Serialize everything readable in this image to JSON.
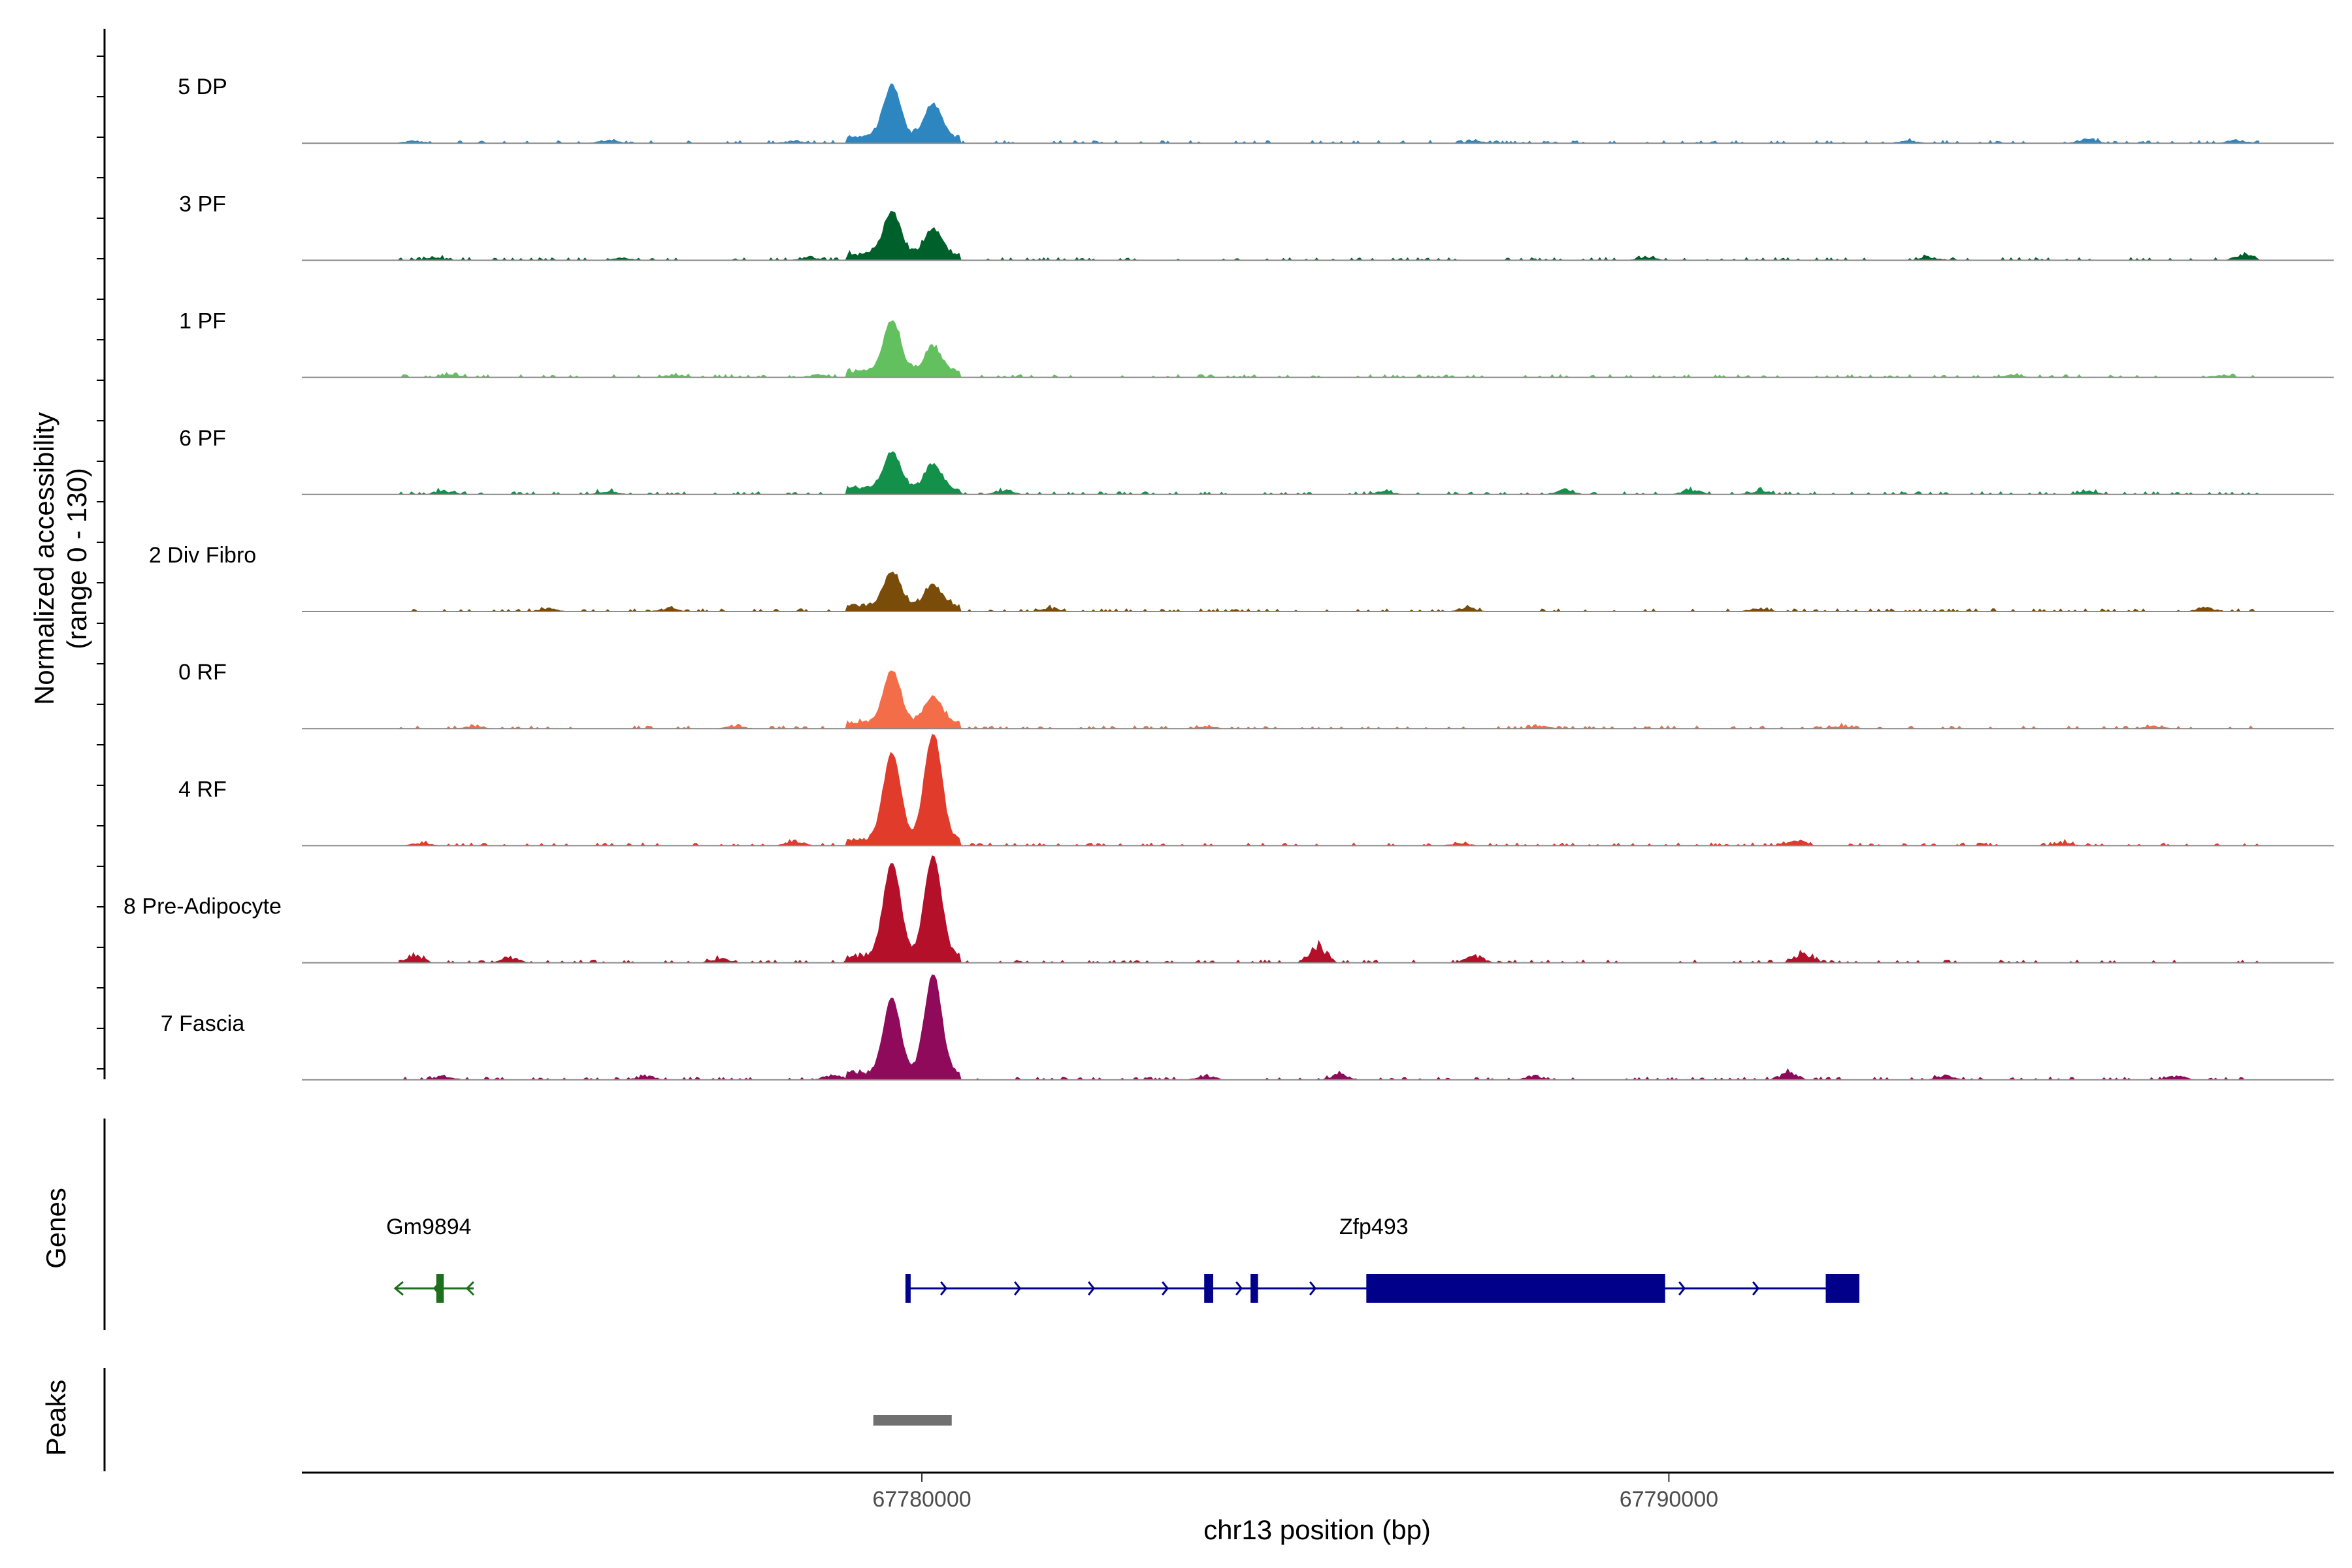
{
  "chart_data": {
    "type": "area",
    "xlabel": "chr13 position (bp)",
    "ylabel_line1": "Normalized accessibility",
    "ylabel_line2": "(range 0 - 130)",
    "y_range": [
      0,
      130
    ],
    "x_range": [
      67771700,
      67798900
    ],
    "x_ticks": [
      67780000,
      67790000
    ],
    "x_tick_labels": [
      "67780000",
      "67790000"
    ],
    "tracks": [
      {
        "name": "5 DP",
        "color": "#2e86c1",
        "peaks": [
          [
            67779600,
            0.47
          ],
          [
            67780150,
            0.3
          ]
        ],
        "background": [
          [
            67773200,
            0.03
          ],
          [
            67775800,
            0.04
          ],
          [
            67778300,
            0.03
          ],
          [
            67787400,
            0.03
          ],
          [
            67793200,
            0.03
          ],
          [
            67795600,
            0.06
          ],
          [
            67797600,
            0.04
          ]
        ]
      },
      {
        "name": "3 PF",
        "color": "#00602b",
        "peaks": [
          [
            67779600,
            0.38
          ],
          [
            67780150,
            0.23
          ]
        ],
        "background": [
          [
            67773500,
            0.04
          ],
          [
            67776000,
            0.03
          ],
          [
            67778500,
            0.04
          ],
          [
            67789700,
            0.04
          ],
          [
            67793500,
            0.04
          ],
          [
            67797700,
            0.07
          ]
        ]
      },
      {
        "name": "1 PF",
        "color": "#63c05e",
        "peaks": [
          [
            67779600,
            0.46
          ],
          [
            67780150,
            0.22
          ]
        ],
        "background": [
          [
            67773700,
            0.03
          ],
          [
            67776700,
            0.04
          ],
          [
            67778600,
            0.03
          ],
          [
            67794600,
            0.03
          ],
          [
            67797400,
            0.03
          ]
        ]
      },
      {
        "name": "6 PF",
        "color": "#13904a",
        "peaks": [
          [
            67779600,
            0.33
          ],
          [
            67780150,
            0.2
          ]
        ],
        "background": [
          [
            67773600,
            0.05
          ],
          [
            67775800,
            0.05
          ],
          [
            67781100,
            0.05
          ],
          [
            67786200,
            0.04
          ],
          [
            67788600,
            0.06
          ],
          [
            67790300,
            0.06
          ],
          [
            67791200,
            0.05
          ],
          [
            67795600,
            0.04
          ]
        ]
      },
      {
        "name": "2 Div Fibro",
        "color": "#7a4c0a",
        "peaks": [
          [
            67779600,
            0.3
          ],
          [
            67780150,
            0.18
          ]
        ],
        "background": [
          [
            67775000,
            0.04
          ],
          [
            67776600,
            0.04
          ],
          [
            67781700,
            0.04
          ],
          [
            67787300,
            0.05
          ],
          [
            67791200,
            0.04
          ],
          [
            67797200,
            0.05
          ]
        ]
      },
      {
        "name": "0 RF",
        "color": "#f26d48",
        "peaks": [
          [
            67779600,
            0.47
          ],
          [
            67780150,
            0.24
          ]
        ],
        "background": [
          [
            67774000,
            0.03
          ],
          [
            67777500,
            0.03
          ],
          [
            67783800,
            0.03
          ],
          [
            67788300,
            0.03
          ],
          [
            67792300,
            0.03
          ],
          [
            67796500,
            0.03
          ]
        ]
      },
      {
        "name": "4 RF",
        "color": "#e13b2b",
        "peaks": [
          [
            67779600,
            0.78
          ],
          [
            67780150,
            0.95
          ]
        ],
        "background": [
          [
            67773300,
            0.03
          ],
          [
            67778300,
            0.06
          ],
          [
            67787200,
            0.03
          ],
          [
            67791700,
            0.07
          ],
          [
            67795300,
            0.03
          ]
        ]
      },
      {
        "name": "8 Pre-Adipocyte",
        "color": "#b5102a",
        "peaks": [
          [
            67779600,
            0.85
          ],
          [
            67780150,
            0.9
          ]
        ],
        "background": [
          [
            67773200,
            0.1
          ],
          [
            67774500,
            0.07
          ],
          [
            67777300,
            0.06
          ],
          [
            67785300,
            0.22
          ],
          [
            67787400,
            0.08
          ],
          [
            67791800,
            0.15
          ]
        ]
      },
      {
        "name": "7 Fascia",
        "color": "#900a5b",
        "peaks": [
          [
            67779600,
            0.68
          ],
          [
            67780150,
            0.9
          ]
        ],
        "background": [
          [
            67773600,
            0.05
          ],
          [
            67776300,
            0.05
          ],
          [
            67778800,
            0.06
          ],
          [
            67783800,
            0.05
          ],
          [
            67785600,
            0.07
          ],
          [
            67788200,
            0.05
          ],
          [
            67791600,
            0.09
          ],
          [
            67793700,
            0.05
          ],
          [
            67796800,
            0.05
          ]
        ]
      }
    ],
    "genes_label": "Genes",
    "peaks_label": "Peaks",
    "genes": [
      {
        "name": "Gm9894",
        "color": "#1d6e1d",
        "strand": "-",
        "start": 67772950,
        "end": 67774000,
        "exons": [
          [
            67773500,
            67773600
          ]
        ]
      },
      {
        "name": "Zfp493",
        "color": "#00008b",
        "strand": "+",
        "start": 67779800,
        "end": 67792400,
        "exons": [
          [
            67779780,
            67779830
          ],
          [
            67783780,
            67783900
          ],
          [
            67784400,
            67784500
          ],
          [
            67785950,
            67789950
          ],
          [
            67792100,
            67792550
          ]
        ]
      }
    ],
    "peak_regions": [
      [
        67779350,
        67780400
      ]
    ]
  },
  "colors": {
    "baseline": "#8a8a8a",
    "axis": "#000000",
    "peak_bar": "#707070"
  }
}
